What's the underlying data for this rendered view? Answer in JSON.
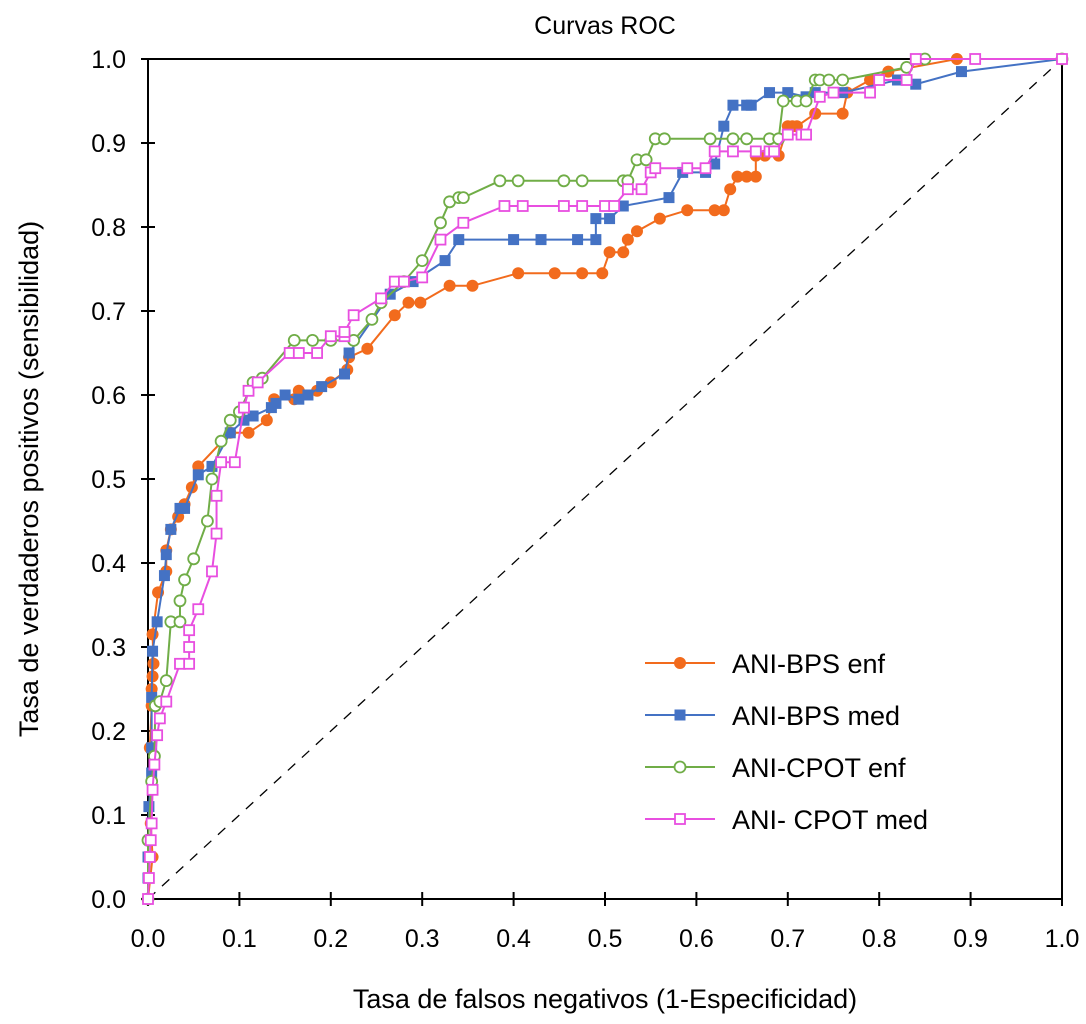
{
  "chart_data": {
    "type": "line",
    "title": "Curvas ROC",
    "xlabel": "Tasa de falsos negativos (1-Especificidad)",
    "ylabel": "Tasa de verdaderos positivos (sensibilidad)",
    "xlim": [
      0,
      1
    ],
    "ylim": [
      0,
      1
    ],
    "xticks": [
      "0.0",
      "0.1",
      "0.2",
      "0.3",
      "0.4",
      "0.5",
      "0.6",
      "0.7",
      "0.8",
      "0.9",
      "1.0"
    ],
    "yticks": [
      "0.0",
      "0.1",
      "0.2",
      "0.3",
      "0.4",
      "0.5",
      "0.6",
      "0.7",
      "0.8",
      "0.9",
      "1.0"
    ],
    "grid": false,
    "legend_position": "bottom-right",
    "reference_line": {
      "name": "diagonal",
      "style": "dashed",
      "x": [
        0,
        1
      ],
      "y": [
        0,
        1
      ],
      "color": "#000000"
    },
    "series": [
      {
        "name": "ANI-BPS enf",
        "color": "#F26B1D",
        "marker": "filled-circle",
        "x": [
          0,
          0.005,
          0.003,
          0.002,
          0.004,
          0.004,
          0.005,
          0.006,
          0.005,
          0.011,
          0.02,
          0.02,
          0.025,
          0.033,
          0.04,
          0.048,
          0.055,
          0.09,
          0.11,
          0.13,
          0.138,
          0.16,
          0.165,
          0.185,
          0.2,
          0.218,
          0.22,
          0.24,
          0.27,
          0.285,
          0.298,
          0.33,
          0.355,
          0.405,
          0.445,
          0.475,
          0.497,
          0.505,
          0.52,
          0.525,
          0.535,
          0.56,
          0.59,
          0.62,
          0.63,
          0.637,
          0.645,
          0.655,
          0.665,
          0.665,
          0.675,
          0.69,
          0.7,
          0.705,
          0.71,
          0.73,
          0.76,
          0.765,
          0.79,
          0.81,
          0.885,
          1.0
        ],
        "y": [
          0,
          0.05,
          0.09,
          0.18,
          0.23,
          0.25,
          0.265,
          0.28,
          0.315,
          0.365,
          0.39,
          0.415,
          0.44,
          0.455,
          0.47,
          0.49,
          0.515,
          0.555,
          0.555,
          0.57,
          0.595,
          0.595,
          0.605,
          0.605,
          0.615,
          0.63,
          0.645,
          0.655,
          0.695,
          0.71,
          0.71,
          0.73,
          0.73,
          0.745,
          0.745,
          0.745,
          0.745,
          0.77,
          0.77,
          0.785,
          0.795,
          0.81,
          0.82,
          0.82,
          0.82,
          0.845,
          0.86,
          0.86,
          0.86,
          0.885,
          0.885,
          0.885,
          0.92,
          0.92,
          0.92,
          0.935,
          0.935,
          0.96,
          0.975,
          0.985,
          1.0,
          1.0
        ]
      },
      {
        "name": "ANI-BPS med",
        "color": "#4472C4",
        "marker": "filled-square",
        "x": [
          0,
          0,
          0,
          0.001,
          0.004,
          0.004,
          0.004,
          0.005,
          0.01,
          0.018,
          0.02,
          0.025,
          0.035,
          0.04,
          0.055,
          0.07,
          0.09,
          0.105,
          0.115,
          0.135,
          0.14,
          0.15,
          0.165,
          0.175,
          0.19,
          0.215,
          0.22,
          0.265,
          0.29,
          0.325,
          0.34,
          0.4,
          0.43,
          0.47,
          0.49,
          0.49,
          0.505,
          0.52,
          0.57,
          0.585,
          0.61,
          0.62,
          0.63,
          0.64,
          0.655,
          0.66,
          0.68,
          0.7,
          0.72,
          0.73,
          0.76,
          0.82,
          0.84,
          0.89,
          1.0
        ],
        "y": [
          0,
          0.025,
          0.05,
          0.11,
          0.15,
          0.18,
          0.24,
          0.295,
          0.33,
          0.385,
          0.41,
          0.44,
          0.465,
          0.465,
          0.505,
          0.515,
          0.555,
          0.57,
          0.575,
          0.585,
          0.59,
          0.6,
          0.595,
          0.6,
          0.61,
          0.625,
          0.65,
          0.72,
          0.735,
          0.76,
          0.785,
          0.785,
          0.785,
          0.785,
          0.785,
          0.81,
          0.81,
          0.825,
          0.835,
          0.865,
          0.865,
          0.875,
          0.92,
          0.945,
          0.945,
          0.945,
          0.96,
          0.96,
          0.955,
          0.96,
          0.96,
          0.975,
          0.97,
          0.985,
          1.0
        ]
      },
      {
        "name": "ANI-CPOT enf",
        "color": "#70AD47",
        "marker": "open-circle",
        "x": [
          0,
          0,
          0.004,
          0.007,
          0.008,
          0.013,
          0.02,
          0.025,
          0.035,
          0.035,
          0.04,
          0.05,
          0.065,
          0.07,
          0.08,
          0.09,
          0.1,
          0.115,
          0.125,
          0.16,
          0.18,
          0.2,
          0.225,
          0.245,
          0.255,
          0.28,
          0.3,
          0.32,
          0.33,
          0.34,
          0.345,
          0.385,
          0.405,
          0.455,
          0.475,
          0.52,
          0.525,
          0.535,
          0.545,
          0.555,
          0.565,
          0.615,
          0.64,
          0.655,
          0.68,
          0.69,
          0.695,
          0.71,
          0.72,
          0.73,
          0.735,
          0.745,
          0.76,
          0.83,
          0.85,
          1.0
        ],
        "y": [
          0,
          0.07,
          0.14,
          0.17,
          0.23,
          0.235,
          0.26,
          0.33,
          0.33,
          0.355,
          0.38,
          0.405,
          0.45,
          0.5,
          0.545,
          0.57,
          0.58,
          0.615,
          0.62,
          0.665,
          0.665,
          0.665,
          0.665,
          0.69,
          0.71,
          0.735,
          0.76,
          0.805,
          0.83,
          0.835,
          0.835,
          0.855,
          0.855,
          0.855,
          0.855,
          0.855,
          0.855,
          0.88,
          0.88,
          0.905,
          0.905,
          0.905,
          0.905,
          0.905,
          0.905,
          0.905,
          0.95,
          0.95,
          0.95,
          0.975,
          0.975,
          0.975,
          0.975,
          0.99,
          1.0,
          1.0
        ]
      },
      {
        "name": "ANI- CPOT med",
        "color": "#E84FE0",
        "marker": "open-square",
        "x": [
          0,
          0.001,
          0.002,
          0.003,
          0.004,
          0.005,
          0.007,
          0.01,
          0.013,
          0.02,
          0.035,
          0.045,
          0.045,
          0.045,
          0.055,
          0.07,
          0.075,
          0.075,
          0.08,
          0.095,
          0.105,
          0.11,
          0.12,
          0.155,
          0.165,
          0.185,
          0.2,
          0.215,
          0.215,
          0.225,
          0.255,
          0.27,
          0.28,
          0.3,
          0.32,
          0.345,
          0.39,
          0.41,
          0.455,
          0.475,
          0.5,
          0.51,
          0.525,
          0.54,
          0.55,
          0.555,
          0.59,
          0.61,
          0.62,
          0.64,
          0.665,
          0.68,
          0.685,
          0.7,
          0.715,
          0.72,
          0.735,
          0.75,
          0.79,
          0.8,
          0.83,
          0.84,
          0.905,
          1.0
        ],
        "y": [
          0,
          0.025,
          0.05,
          0.07,
          0.09,
          0.13,
          0.16,
          0.195,
          0.215,
          0.235,
          0.28,
          0.28,
          0.3,
          0.32,
          0.345,
          0.39,
          0.435,
          0.48,
          0.52,
          0.52,
          0.585,
          0.605,
          0.615,
          0.65,
          0.65,
          0.65,
          0.67,
          0.67,
          0.675,
          0.695,
          0.715,
          0.735,
          0.735,
          0.74,
          0.785,
          0.805,
          0.825,
          0.825,
          0.825,
          0.825,
          0.825,
          0.825,
          0.845,
          0.845,
          0.865,
          0.87,
          0.87,
          0.87,
          0.89,
          0.89,
          0.89,
          0.89,
          0.89,
          0.91,
          0.91,
          0.91,
          0.955,
          0.96,
          0.96,
          0.975,
          0.975,
          1.0,
          1.0,
          1.0
        ]
      }
    ]
  }
}
